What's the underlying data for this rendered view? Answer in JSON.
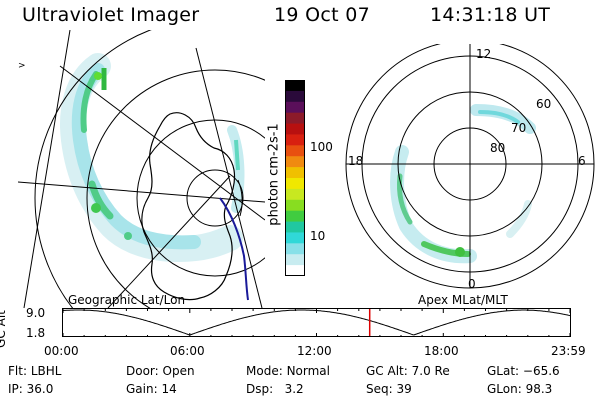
{
  "header": {
    "instrument": "Ultraviolet Imager",
    "date": "19 Oct 07",
    "time": "14:31:18 UT"
  },
  "geo_map": {
    "label": "Geographic Lat/Lon"
  },
  "colorbar": {
    "unit_label": "photon cm-2s-1",
    "ticks": [
      "100",
      "10"
    ],
    "scale": "log",
    "colors": [
      "#000000",
      "#2a0a3a",
      "#5a0f5a",
      "#8c1a2a",
      "#b81010",
      "#d82010",
      "#e85010",
      "#f08a10",
      "#f0c000",
      "#f0e800",
      "#c8e820",
      "#88dd20",
      "#40cc40",
      "#20c8a0",
      "#30d8d8",
      "#88e0e8",
      "#c8ecf0",
      "#ffffff"
    ]
  },
  "polar_plot": {
    "label": "Apex MLat/MLT",
    "mlt_labels": [
      "12",
      "18",
      "6",
      "0"
    ],
    "lat_labels": [
      "60",
      "70",
      "80"
    ]
  },
  "timeline": {
    "axis_title": "GC Alt",
    "y_ticks": [
      "9.0",
      "1.8"
    ],
    "x_ticks": [
      "00:00",
      "06:00",
      "12:00",
      "18:00",
      "23:59"
    ],
    "x_range_hours": [
      0,
      24
    ],
    "marker_hour": 14.52,
    "marker_color": "#dd0000"
  },
  "status": {
    "filter_label": "Flt:",
    "filter_value": "LBHL",
    "ip_label": "IP:",
    "ip_value": "36.0",
    "door_label": "Door:",
    "door_value": "Open",
    "gain_label": "Gain:",
    "gain_value": "14",
    "mode_label": "Mode:",
    "mode_value": "Normal",
    "dsp_label": "Dsp:",
    "dsp_value": "3.2",
    "gcalt_label": "GC Alt:",
    "gcalt_value": "7.0 Re",
    "seq_label": "Seq:",
    "seq_value": "39",
    "glat_label": "GLat:",
    "glat_value": "−65.6",
    "glon_label": "GLon:",
    "glon_value": "98.3"
  }
}
